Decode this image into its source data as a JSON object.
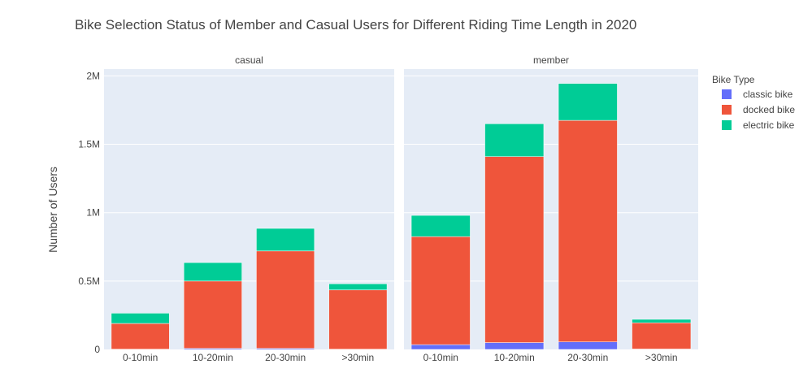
{
  "chart_data": {
    "type": "bar",
    "stacked": true,
    "title": "Bike Selection Status of Member and Casual Users for Different Riding Time Length in 2020",
    "ylabel": "Number of Users",
    "xlabel": "",
    "ylim": [
      0,
      2050000
    ],
    "yticks": [
      {
        "value": 0,
        "label": "0"
      },
      {
        "value": 500000,
        "label": "0.5M"
      },
      {
        "value": 1000000,
        "label": "1M"
      },
      {
        "value": 1500000,
        "label": "1.5M"
      },
      {
        "value": 2000000,
        "label": "2M"
      }
    ],
    "categories": [
      "0-10min",
      "10-20min",
      "20-30min",
      ">30min"
    ],
    "legend": {
      "title": "Bike Type",
      "position": "right"
    },
    "grid": true,
    "series_colors": {
      "classic bike": "#636efa",
      "docked bike": "#ef553b",
      "electric bike": "#00cc96"
    },
    "facets": [
      {
        "name": "casual",
        "series": [
          {
            "name": "classic bike",
            "values": [
              2000,
              8000,
              8000,
              2000
            ]
          },
          {
            "name": "docked bike",
            "values": [
              188000,
              492000,
              712000,
              433000
            ]
          },
          {
            "name": "electric bike",
            "values": [
              75000,
              135000,
              165000,
              45000
            ]
          }
        ]
      },
      {
        "name": "member",
        "series": [
          {
            "name": "classic bike",
            "values": [
              35000,
              50000,
              55000,
              3000
            ]
          },
          {
            "name": "docked bike",
            "values": [
              790000,
              1360000,
              1620000,
              192000
            ]
          },
          {
            "name": "electric bike",
            "values": [
              155000,
              240000,
              270000,
              25000
            ]
          }
        ]
      }
    ]
  }
}
